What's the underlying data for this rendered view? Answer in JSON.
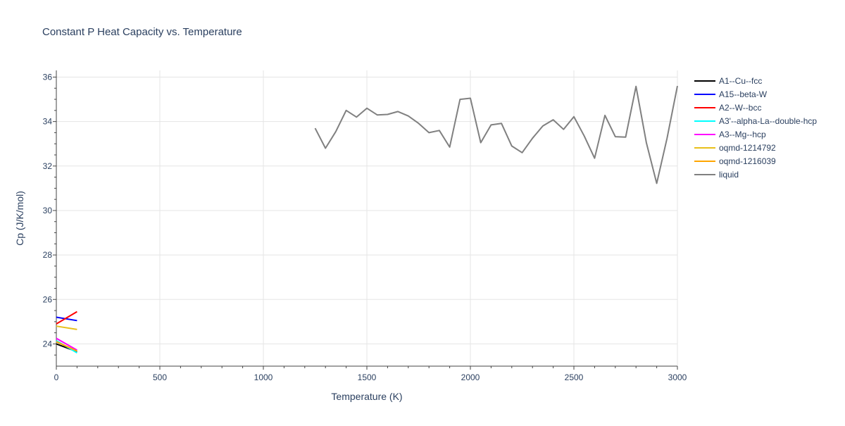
{
  "chart_data": {
    "type": "line",
    "title": "Constant P Heat Capacity vs. Temperature",
    "xlabel": "Temperature (K)",
    "ylabel": "Cp (J/K/mol)",
    "xlim": [
      0,
      3000
    ],
    "ylim": [
      23,
      36.3
    ],
    "xticks": [
      0,
      500,
      1000,
      1500,
      2000,
      2500,
      3000
    ],
    "yticks": [
      24,
      26,
      28,
      30,
      32,
      34,
      36
    ],
    "grid": true,
    "legend_position": "right",
    "series": [
      {
        "name": "A1--Cu--fcc",
        "color": "#000000",
        "x": [
          0,
          100
        ],
        "y": [
          24.0,
          23.65
        ]
      },
      {
        "name": "A15--beta-W",
        "color": "#0000ff",
        "x": [
          0,
          100
        ],
        "y": [
          25.2,
          25.05
        ]
      },
      {
        "name": "A2--W--bcc",
        "color": "#ff0000",
        "x": [
          0,
          100
        ],
        "y": [
          24.9,
          25.45
        ]
      },
      {
        "name": "A3'--alpha-La--double-hcp",
        "color": "#00ffff",
        "x": [
          0,
          100
        ],
        "y": [
          24.15,
          23.6
        ]
      },
      {
        "name": "A3--Mg--hcp",
        "color": "#ff00ff",
        "x": [
          0,
          100
        ],
        "y": [
          24.25,
          23.72
        ]
      },
      {
        "name": "oqmd-1214792",
        "color": "#e8c01a",
        "x": [
          0,
          100
        ],
        "y": [
          24.8,
          24.65
        ]
      },
      {
        "name": "oqmd-1216039",
        "color": "#ffa500",
        "x": [
          0,
          100
        ],
        "y": [
          24.1,
          23.68
        ]
      },
      {
        "name": "liquid",
        "color": "#808080",
        "x": [
          1250,
          1300,
          1350,
          1400,
          1450,
          1500,
          1550,
          1600,
          1650,
          1700,
          1750,
          1800,
          1850,
          1900,
          1950,
          2000,
          2050,
          2100,
          2150,
          2200,
          2250,
          2300,
          2350,
          2400,
          2450,
          2500,
          2550,
          2600,
          2650,
          2700,
          2750,
          2800,
          2850,
          2900,
          2950,
          3000
        ],
        "y": [
          33.7,
          32.8,
          33.55,
          34.5,
          34.2,
          34.6,
          34.3,
          34.32,
          34.45,
          34.25,
          33.92,
          33.5,
          33.6,
          32.85,
          35.0,
          35.05,
          33.05,
          33.85,
          33.92,
          32.9,
          32.6,
          33.25,
          33.8,
          34.08,
          33.65,
          34.22,
          33.35,
          32.35,
          34.28,
          33.32,
          33.3,
          35.58,
          33.05,
          31.22,
          33.25,
          35.6
        ]
      }
    ]
  }
}
